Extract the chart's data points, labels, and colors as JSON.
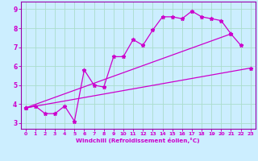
{
  "xlabel": "Windchill (Refroidissement éolien,°C)",
  "bg_color": "#cceeff",
  "line_color": "#cc00cc",
  "grid_color": "#aaddcc",
  "xlim": [
    -0.5,
    23.5
  ],
  "ylim": [
    2.7,
    9.4
  ],
  "xticks": [
    0,
    1,
    2,
    3,
    4,
    5,
    6,
    7,
    8,
    9,
    10,
    11,
    12,
    13,
    14,
    15,
    16,
    17,
    18,
    19,
    20,
    21,
    22,
    23
  ],
  "yticks": [
    3,
    4,
    5,
    6,
    7,
    8,
    9
  ],
  "line1_x": [
    0,
    1,
    2,
    3,
    4,
    5,
    6,
    7,
    8,
    9,
    10,
    11,
    12,
    13,
    14,
    15,
    16,
    17,
    18,
    19,
    20,
    21,
    22
  ],
  "line1_y": [
    3.8,
    3.9,
    3.5,
    3.5,
    3.9,
    3.1,
    5.8,
    5.0,
    4.9,
    6.5,
    6.5,
    7.4,
    7.1,
    7.9,
    8.6,
    8.6,
    8.5,
    8.9,
    8.6,
    8.5,
    8.4,
    7.7,
    7.1
  ],
  "line2_x": [
    0,
    23
  ],
  "line2_y": [
    3.8,
    5.9
  ],
  "line3_x": [
    0,
    21
  ],
  "line3_y": [
    3.8,
    7.7
  ],
  "spine_color": "#9900aa"
}
